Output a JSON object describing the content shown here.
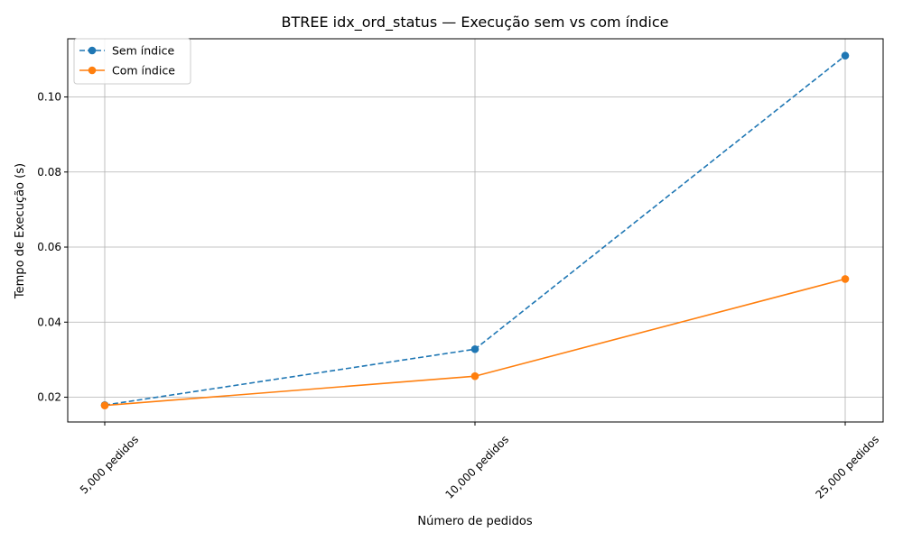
{
  "chart_data": {
    "type": "line",
    "title": "BTREE idx_ord_status — Execução sem vs com índice",
    "xlabel": "Número de pedidos",
    "ylabel": "Tempo de Execução (s)",
    "categories": [
      "5,000 pedidos",
      "10,000 pedidos",
      "25,000 pedidos"
    ],
    "series": [
      {
        "name": "Sem índice",
        "values": [
          0.0179,
          0.0328,
          0.111
        ],
        "color": "#1f77b4",
        "style": "dashed",
        "marker": "circle"
      },
      {
        "name": "Com índice",
        "values": [
          0.0178,
          0.0256,
          0.0515
        ],
        "color": "#ff7f0e",
        "style": "solid",
        "marker": "circle"
      }
    ],
    "ylim": [
      0.0134,
      0.1155
    ],
    "yticks": [
      0.02,
      0.04,
      0.06,
      0.08,
      0.1
    ],
    "ytick_labels": [
      "0.02",
      "0.04",
      "0.06",
      "0.08",
      "0.10"
    ],
    "grid": true,
    "legend_position": "top-left"
  }
}
